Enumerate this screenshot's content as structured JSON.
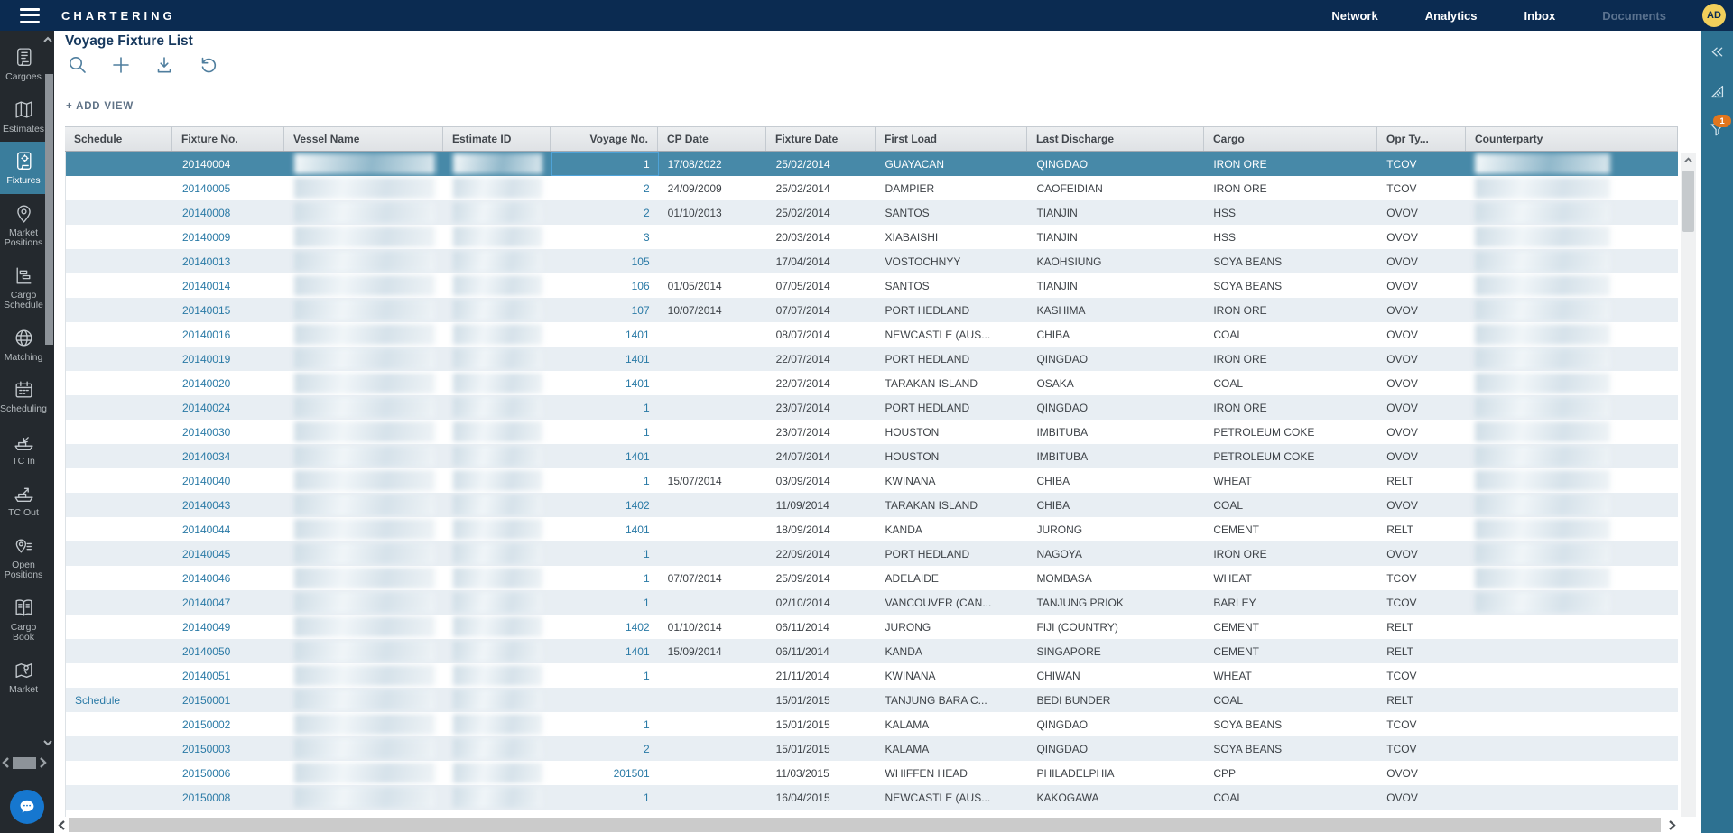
{
  "topbar": {
    "brand": "CHARTERING",
    "nav": [
      {
        "label": "Network",
        "enabled": true
      },
      {
        "label": "Analytics",
        "enabled": true
      },
      {
        "label": "Inbox",
        "enabled": true
      },
      {
        "label": "Documents",
        "enabled": false
      }
    ],
    "avatar": "AD"
  },
  "sidebar": {
    "items": [
      {
        "icon": "cargoes-icon",
        "label": "Cargoes",
        "active": false
      },
      {
        "icon": "estimates-icon",
        "label": "Estimates",
        "active": false
      },
      {
        "icon": "fixtures-icon",
        "label": "Fixtures",
        "active": true
      },
      {
        "icon": "market-positions-icon",
        "label": "Market Positions",
        "active": false
      },
      {
        "icon": "cargo-schedule-icon",
        "label": "Cargo Schedule",
        "active": false
      },
      {
        "icon": "matching-icon",
        "label": "Matching",
        "active": false
      },
      {
        "icon": "scheduling-icon",
        "label": "Scheduling",
        "active": false
      },
      {
        "icon": "tc-in-icon",
        "label": "TC In",
        "active": false
      },
      {
        "icon": "tc-out-icon",
        "label": "TC Out",
        "active": false
      },
      {
        "icon": "open-positions-icon",
        "label": "Open Positions",
        "active": false
      },
      {
        "icon": "cargo-book-icon",
        "label": "Cargo Book",
        "active": false
      },
      {
        "icon": "market-icon",
        "label": "Market",
        "active": false
      }
    ]
  },
  "page": {
    "title": "Voyage Fixture List",
    "add_view_label": "+ ADD VIEW",
    "toolbar": [
      {
        "icon": "search-icon"
      },
      {
        "icon": "add-icon"
      },
      {
        "icon": "download-icon"
      },
      {
        "icon": "undo-icon"
      }
    ]
  },
  "table": {
    "columns": [
      {
        "key": "schedule",
        "label": "Schedule"
      },
      {
        "key": "fixture_no",
        "label": "Fixture No."
      },
      {
        "key": "vessel_name",
        "label": "Vessel Name",
        "redacted": true
      },
      {
        "key": "estimate_id",
        "label": "Estimate ID",
        "redacted": true
      },
      {
        "key": "voyage_no",
        "label": "Voyage No.",
        "align": "right"
      },
      {
        "key": "cp_date",
        "label": "CP Date"
      },
      {
        "key": "fixture_date",
        "label": "Fixture Date"
      },
      {
        "key": "first_load",
        "label": "First Load"
      },
      {
        "key": "last_discharge",
        "label": "Last Discharge"
      },
      {
        "key": "cargo",
        "label": "Cargo"
      },
      {
        "key": "opr_type",
        "label": "Opr Ty..."
      },
      {
        "key": "counterparty",
        "label": "Counterparty",
        "redacted": true
      }
    ],
    "rows": [
      {
        "schedule": "",
        "fixture_no": "20140004",
        "voyage_no": "1",
        "cp_date": "17/08/2022",
        "fixture_date": "25/02/2014",
        "first_load": "GUAYACAN",
        "last_discharge": "QINGDAO",
        "cargo": "IRON ORE",
        "opr_type": "TCOV",
        "selected": true,
        "voyage_focused": true
      },
      {
        "schedule": "",
        "fixture_no": "20140005",
        "voyage_no": "2",
        "cp_date": "24/09/2009",
        "fixture_date": "25/02/2014",
        "first_load": "DAMPIER",
        "last_discharge": "CAOFEIDIAN",
        "cargo": "IRON ORE",
        "opr_type": "TCOV"
      },
      {
        "schedule": "",
        "fixture_no": "20140008",
        "voyage_no": "2",
        "cp_date": "01/10/2013",
        "fixture_date": "25/02/2014",
        "first_load": "SANTOS",
        "last_discharge": "TIANJIN",
        "cargo": "HSS",
        "opr_type": "OVOV"
      },
      {
        "schedule": "",
        "fixture_no": "20140009",
        "voyage_no": "3",
        "cp_date": "",
        "fixture_date": "20/03/2014",
        "first_load": "XIABAISHI",
        "last_discharge": "TIANJIN",
        "cargo": "HSS",
        "opr_type": "OVOV"
      },
      {
        "schedule": "",
        "fixture_no": "20140013",
        "voyage_no": "105",
        "cp_date": "",
        "fixture_date": "17/04/2014",
        "first_load": "VOSTOCHNYY",
        "last_discharge": "KAOHSIUNG",
        "cargo": "SOYA BEANS",
        "opr_type": "OVOV"
      },
      {
        "schedule": "",
        "fixture_no": "20140014",
        "voyage_no": "106",
        "cp_date": "01/05/2014",
        "fixture_date": "07/05/2014",
        "first_load": "SANTOS",
        "last_discharge": "TIANJIN",
        "cargo": "SOYA BEANS",
        "opr_type": "OVOV"
      },
      {
        "schedule": "",
        "fixture_no": "20140015",
        "voyage_no": "107",
        "cp_date": "10/07/2014",
        "fixture_date": "07/07/2014",
        "first_load": "PORT HEDLAND",
        "last_discharge": "KASHIMA",
        "cargo": "IRON ORE",
        "opr_type": "OVOV"
      },
      {
        "schedule": "",
        "fixture_no": "20140016",
        "voyage_no": "1401",
        "cp_date": "",
        "fixture_date": "08/07/2014",
        "first_load": "NEWCASTLE (AUS...",
        "last_discharge": "CHIBA",
        "cargo": "COAL",
        "opr_type": "OVOV"
      },
      {
        "schedule": "",
        "fixture_no": "20140019",
        "voyage_no": "1401",
        "cp_date": "",
        "fixture_date": "22/07/2014",
        "first_load": "PORT HEDLAND",
        "last_discharge": "QINGDAO",
        "cargo": "IRON ORE",
        "opr_type": "OVOV"
      },
      {
        "schedule": "",
        "fixture_no": "20140020",
        "voyage_no": "1401",
        "cp_date": "",
        "fixture_date": "22/07/2014",
        "first_load": "TARAKAN ISLAND",
        "last_discharge": "OSAKA",
        "cargo": "COAL",
        "opr_type": "OVOV"
      },
      {
        "schedule": "",
        "fixture_no": "20140024",
        "voyage_no": "1",
        "cp_date": "",
        "fixture_date": "23/07/2014",
        "first_load": "PORT HEDLAND",
        "last_discharge": "QINGDAO",
        "cargo": "IRON ORE",
        "opr_type": "OVOV"
      },
      {
        "schedule": "",
        "fixture_no": "20140030",
        "voyage_no": "1",
        "cp_date": "",
        "fixture_date": "23/07/2014",
        "first_load": "HOUSTON",
        "last_discharge": "IMBITUBA",
        "cargo": "PETROLEUM COKE",
        "opr_type": "OVOV"
      },
      {
        "schedule": "",
        "fixture_no": "20140034",
        "voyage_no": "1401",
        "cp_date": "",
        "fixture_date": "24/07/2014",
        "first_load": "HOUSTON",
        "last_discharge": "IMBITUBA",
        "cargo": "PETROLEUM COKE",
        "opr_type": "OVOV"
      },
      {
        "schedule": "",
        "fixture_no": "20140040",
        "voyage_no": "1",
        "cp_date": "15/07/2014",
        "fixture_date": "03/09/2014",
        "first_load": "KWINANA",
        "last_discharge": "CHIBA",
        "cargo": "WHEAT",
        "opr_type": "RELT"
      },
      {
        "schedule": "",
        "fixture_no": "20140043",
        "voyage_no": "1402",
        "cp_date": "",
        "fixture_date": "11/09/2014",
        "first_load": "TARAKAN ISLAND",
        "last_discharge": "CHIBA",
        "cargo": "COAL",
        "opr_type": "OVOV"
      },
      {
        "schedule": "",
        "fixture_no": "20140044",
        "voyage_no": "1401",
        "cp_date": "",
        "fixture_date": "18/09/2014",
        "first_load": "KANDA",
        "last_discharge": "JURONG",
        "cargo": "CEMENT",
        "opr_type": "RELT"
      },
      {
        "schedule": "",
        "fixture_no": "20140045",
        "voyage_no": "1",
        "cp_date": "",
        "fixture_date": "22/09/2014",
        "first_load": "PORT HEDLAND",
        "last_discharge": "NAGOYA",
        "cargo": "IRON ORE",
        "opr_type": "OVOV"
      },
      {
        "schedule": "",
        "fixture_no": "20140046",
        "voyage_no": "1",
        "cp_date": "07/07/2014",
        "fixture_date": "25/09/2014",
        "first_load": "ADELAIDE",
        "last_discharge": "MOMBASA",
        "cargo": "WHEAT",
        "opr_type": "TCOV"
      },
      {
        "schedule": "",
        "fixture_no": "20140047",
        "voyage_no": "1",
        "cp_date": "",
        "fixture_date": "02/10/2014",
        "first_load": "VANCOUVER (CAN...",
        "last_discharge": "TANJUNG PRIOK",
        "cargo": "BARLEY",
        "opr_type": "TCOV"
      },
      {
        "schedule": "",
        "fixture_no": "20140049",
        "voyage_no": "1402",
        "cp_date": "01/10/2014",
        "fixture_date": "06/11/2014",
        "first_load": "JURONG",
        "last_discharge": "FIJI (COUNTRY)",
        "cargo": "CEMENT",
        "opr_type": "RELT"
      },
      {
        "schedule": "",
        "fixture_no": "20140050",
        "voyage_no": "1401",
        "cp_date": "15/09/2014",
        "fixture_date": "06/11/2014",
        "first_load": "KANDA",
        "last_discharge": "SINGAPORE",
        "cargo": "CEMENT",
        "opr_type": "RELT"
      },
      {
        "schedule": "",
        "fixture_no": "20140051",
        "voyage_no": "1",
        "cp_date": "",
        "fixture_date": "21/11/2014",
        "first_load": "KWINANA",
        "last_discharge": "CHIWAN",
        "cargo": "WHEAT",
        "opr_type": "TCOV"
      },
      {
        "schedule": "Schedule",
        "fixture_no": "20150001",
        "voyage_no": "",
        "cp_date": "",
        "fixture_date": "15/01/2015",
        "first_load": "TANJUNG BARA C...",
        "last_discharge": "BEDI BUNDER",
        "cargo": "COAL",
        "opr_type": "RELT"
      },
      {
        "schedule": "",
        "fixture_no": "20150002",
        "voyage_no": "1",
        "cp_date": "",
        "fixture_date": "15/01/2015",
        "first_load": "KALAMA",
        "last_discharge": "QINGDAO",
        "cargo": "SOYA BEANS",
        "opr_type": "TCOV"
      },
      {
        "schedule": "",
        "fixture_no": "20150003",
        "voyage_no": "2",
        "cp_date": "",
        "fixture_date": "15/01/2015",
        "first_load": "KALAMA",
        "last_discharge": "QINGDAO",
        "cargo": "SOYA BEANS",
        "opr_type": "TCOV"
      },
      {
        "schedule": "",
        "fixture_no": "20150006",
        "voyage_no": "201501",
        "cp_date": "",
        "fixture_date": "11/03/2015",
        "first_load": "WHIFFEN HEAD",
        "last_discharge": "PHILADELPHIA",
        "cargo": "CPP",
        "opr_type": "OVOV"
      },
      {
        "schedule": "",
        "fixture_no": "20150008",
        "voyage_no": "1",
        "cp_date": "",
        "fixture_date": "16/04/2015",
        "first_load": "NEWCASTLE (AUS...",
        "last_discharge": "KAKOGAWA",
        "cargo": "COAL",
        "opr_type": "OVOV"
      }
    ]
  },
  "right_rail": {
    "icons": [
      {
        "icon": "collapse-icon"
      },
      {
        "icon": "measure-icon"
      },
      {
        "icon": "filter-icon",
        "badge": "1"
      }
    ]
  }
}
